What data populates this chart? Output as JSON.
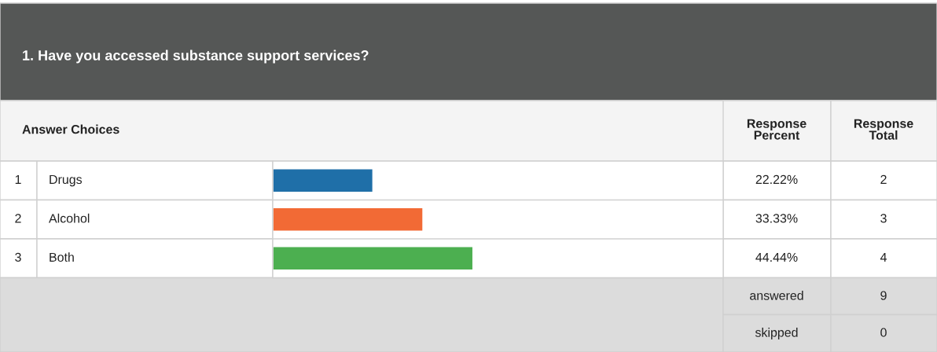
{
  "chart_data": {
    "type": "bar",
    "orientation": "horizontal",
    "title": "1. Have you accessed substance support services?",
    "categories": [
      "Drugs",
      "Alcohol",
      "Both"
    ],
    "values": [
      22.22,
      33.33,
      44.44
    ],
    "colors": [
      "#1f6fa8",
      "#f26a35",
      "#4caf50"
    ],
    "value_labels": [
      "22.22%",
      "33.33%",
      "44.44%"
    ],
    "xlim": [
      0,
      100
    ],
    "annotations": [
      "Answer Choices",
      "Response Percent",
      "Response Total",
      "1",
      "2",
      "3",
      "2",
      "3",
      "4",
      "answered",
      "9",
      "skipped",
      "0"
    ]
  }
}
